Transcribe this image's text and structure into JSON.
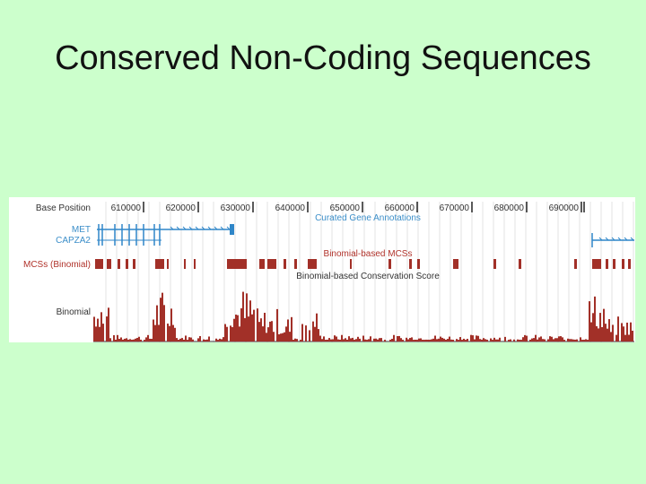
{
  "slide": {
    "title": "Conserved Non-Coding Sequences"
  },
  "browser": {
    "track_labels": {
      "base_position": "Base Position",
      "gene1": "MET",
      "gene2": "CAPZA2",
      "mcs": "MCSs (Binomial)",
      "binomial": "Binomial"
    },
    "section_titles": {
      "genes": "Curated Gene Annotations",
      "mcs": "Binomial-based MCSs",
      "score": "Binomial-based Conservation Score"
    },
    "ruler": {
      "ticks": [
        "610000",
        "620000",
        "630000",
        "640000",
        "650000",
        "660000",
        "670000",
        "680000",
        "690000"
      ]
    },
    "colors": {
      "label_blue": "#3b8ec9",
      "label_red": "#b0322a",
      "track_red": "#a23028",
      "gene_blue": "#2f86c8",
      "background": "#ccffcc"
    }
  }
}
